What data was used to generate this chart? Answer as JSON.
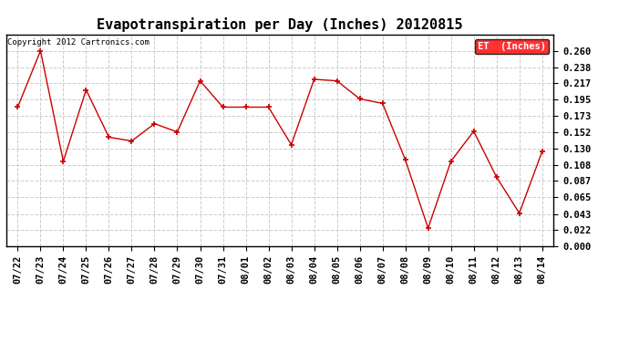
{
  "title": "Evapotranspiration per Day (Inches) 20120815",
  "copyright": "Copyright 2012 Cartronics.com",
  "legend_label": "ET  (Inches)",
  "legend_bg": "#FF0000",
  "legend_text_color": "#FFFFFF",
  "dates": [
    "07/22",
    "07/23",
    "07/24",
    "07/25",
    "07/26",
    "07/27",
    "07/28",
    "07/29",
    "07/30",
    "07/31",
    "08/01",
    "08/02",
    "08/03",
    "08/04",
    "08/05",
    "08/06",
    "08/07",
    "08/08",
    "08/09",
    "08/10",
    "08/11",
    "08/12",
    "08/13",
    "08/14"
  ],
  "values": [
    0.185,
    0.26,
    0.113,
    0.208,
    0.145,
    0.14,
    0.163,
    0.152,
    0.22,
    0.185,
    0.185,
    0.185,
    0.135,
    0.222,
    0.22,
    0.196,
    0.19,
    0.115,
    0.024,
    0.113,
    0.153,
    0.092,
    0.044,
    0.126
  ],
  "ylim": [
    0.0,
    0.282
  ],
  "yticks": [
    0.0,
    0.022,
    0.043,
    0.065,
    0.087,
    0.108,
    0.13,
    0.152,
    0.173,
    0.195,
    0.217,
    0.238,
    0.26
  ],
  "line_color": "#CC0000",
  "marker": "+",
  "marker_size": 5,
  "marker_edge_width": 1.2,
  "line_width": 1.0,
  "grid_color": "#CCCCCC",
  "grid_linestyle": "--",
  "grid_linewidth": 0.7,
  "bg_color": "#FFFFFF",
  "plot_bg_color": "#FFFFFF",
  "title_fontsize": 11,
  "copyright_fontsize": 6.5,
  "tick_fontsize": 7.5,
  "legend_fontsize": 7.5,
  "border_color": "#000000"
}
